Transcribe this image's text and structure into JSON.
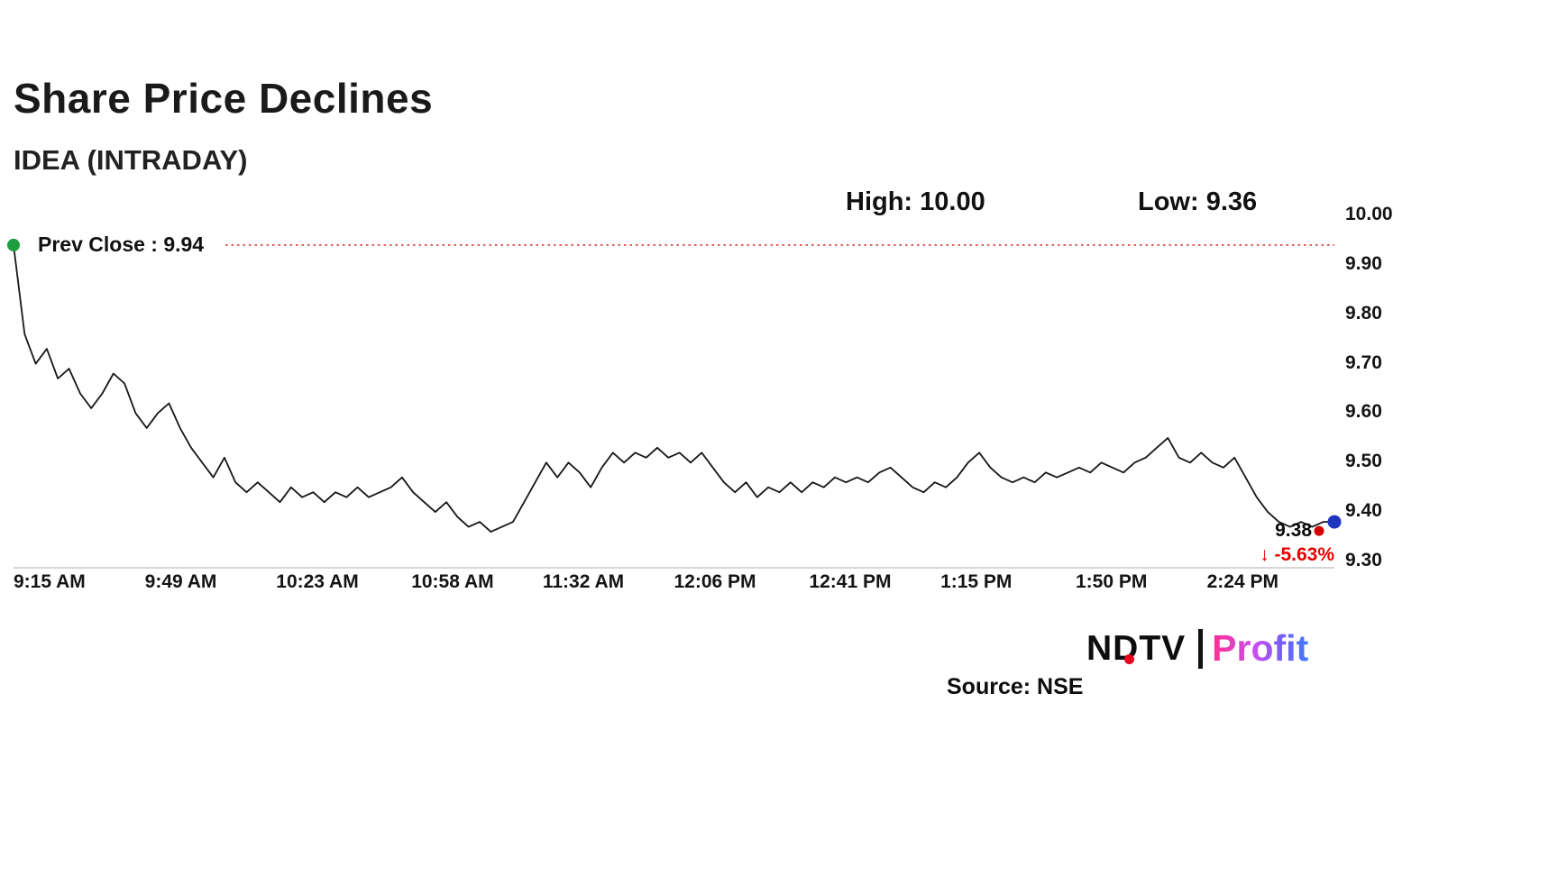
{
  "header": {
    "title": "Share Price Declines",
    "subtitle": "IDEA (INTRADAY)"
  },
  "stats": {
    "high": "High: 10.00",
    "low": "Low: 9.36"
  },
  "prev_close": {
    "label": "Prev Close : 9.94",
    "value": 9.94
  },
  "last": {
    "price": "9.38",
    "arrow": "↓",
    "change": "-5.63%"
  },
  "footer": {
    "logo_ndtv": "NDTV",
    "logo_separator": "|",
    "logo_profit": "Profit",
    "source": "Source: NSE"
  },
  "chart_data": {
    "type": "line",
    "title": "IDEA (INTRADAY)",
    "xlabel": "",
    "ylabel": "",
    "high": 10.0,
    "low": 9.36,
    "prev_close": 9.94,
    "last": 9.38,
    "change_pct": -5.63,
    "ylim": [
      9.3,
      10.0
    ],
    "grid": false,
    "legend": false,
    "y_ticks": [
      "10.00",
      "9.90",
      "9.80",
      "9.70",
      "9.60",
      "9.50",
      "9.40",
      "9.30"
    ],
    "x_total_minutes": 342,
    "x_ticks": [
      {
        "label": "9:15 AM",
        "minute": 0
      },
      {
        "label": "9:49 AM",
        "minute": 34
      },
      {
        "label": "10:23 AM",
        "minute": 68
      },
      {
        "label": "10:58 AM",
        "minute": 103
      },
      {
        "label": "11:32 AM",
        "minute": 137
      },
      {
        "label": "12:06 PM",
        "minute": 171
      },
      {
        "label": "12:41 PM",
        "minute": 206
      },
      {
        "label": "1:15 PM",
        "minute": 240
      },
      {
        "label": "1:50 PM",
        "minute": 275
      },
      {
        "label": "2:24 PM",
        "minute": 309
      }
    ],
    "prices": [
      9.94,
      9.76,
      9.7,
      9.73,
      9.67,
      9.69,
      9.64,
      9.61,
      9.64,
      9.68,
      9.66,
      9.6,
      9.57,
      9.6,
      9.62,
      9.57,
      9.53,
      9.5,
      9.47,
      9.51,
      9.46,
      9.44,
      9.46,
      9.44,
      9.42,
      9.45,
      9.43,
      9.44,
      9.42,
      9.44,
      9.43,
      9.45,
      9.43,
      9.44,
      9.45,
      9.47,
      9.44,
      9.42,
      9.4,
      9.42,
      9.39,
      9.37,
      9.38,
      9.36,
      9.37,
      9.38,
      9.42,
      9.46,
      9.5,
      9.47,
      9.5,
      9.48,
      9.45,
      9.49,
      9.52,
      9.5,
      9.52,
      9.51,
      9.53,
      9.51,
      9.52,
      9.5,
      9.52,
      9.49,
      9.46,
      9.44,
      9.46,
      9.43,
      9.45,
      9.44,
      9.46,
      9.44,
      9.46,
      9.45,
      9.47,
      9.46,
      9.47,
      9.46,
      9.48,
      9.49,
      9.47,
      9.45,
      9.44,
      9.46,
      9.45,
      9.47,
      9.5,
      9.52,
      9.49,
      9.47,
      9.46,
      9.47,
      9.46,
      9.48,
      9.47,
      9.48,
      9.49,
      9.48,
      9.5,
      9.49,
      9.48,
      9.5,
      9.51,
      9.53,
      9.55,
      9.51,
      9.5,
      9.52,
      9.5,
      9.49,
      9.51,
      9.47,
      9.43,
      9.4,
      9.38,
      9.37,
      9.38,
      9.37,
      9.38,
      9.38
    ],
    "colors": {
      "line": "#161616",
      "prev_close_line": "#cc1111",
      "start_dot": "#1e9e3e",
      "end_dot": "#1f35c0",
      "last_dot": "#d40000",
      "change_text": "#e60000",
      "axis_line": "#c9c9c9"
    }
  }
}
